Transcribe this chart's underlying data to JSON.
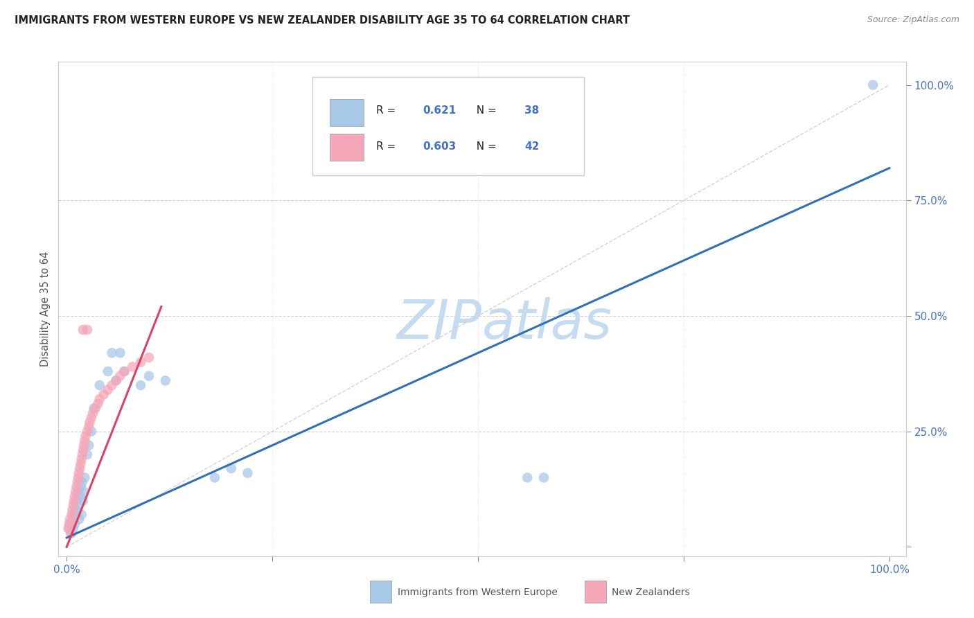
{
  "title": "IMMIGRANTS FROM WESTERN EUROPE VS NEW ZEALANDER DISABILITY AGE 35 TO 64 CORRELATION CHART",
  "source": "Source: ZipAtlas.com",
  "ylabel": "Disability Age 35 to 64",
  "xlim": [
    -0.01,
    1.02
  ],
  "ylim": [
    -0.02,
    1.05
  ],
  "blue_R": "0.621",
  "blue_N": "38",
  "pink_R": "0.603",
  "pink_N": "42",
  "blue_dot_color": "#a8c8e8",
  "pink_dot_color": "#f4a7b9",
  "blue_line_color": "#3070b8",
  "pink_line_color": "#e04060",
  "grid_color": "#d0d0d0",
  "diagonal_color": "#c8c8c8",
  "watermark_color": "#c5dcf0",
  "blue_line_x0": 0.0,
  "blue_line_y0": 0.02,
  "blue_line_x1": 1.0,
  "blue_line_y1": 0.82,
  "pink_line_x0": 0.0,
  "pink_line_y0": 0.0,
  "pink_line_x1": 0.115,
  "pink_line_y1": 0.52,
  "blue_scatter_x": [
    0.003,
    0.005,
    0.006,
    0.007,
    0.008,
    0.009,
    0.01,
    0.011,
    0.012,
    0.013,
    0.014,
    0.015,
    0.016,
    0.017,
    0.018,
    0.019,
    0.02,
    0.021,
    0.022,
    0.025,
    0.027,
    0.03,
    0.033,
    0.04,
    0.05,
    0.055,
    0.06,
    0.065,
    0.07,
    0.09,
    0.1,
    0.12,
    0.18,
    0.2,
    0.22,
    0.56,
    0.58,
    0.98
  ],
  "blue_scatter_y": [
    0.04,
    0.05,
    0.03,
    0.06,
    0.04,
    0.07,
    0.05,
    0.08,
    0.1,
    0.09,
    0.12,
    0.06,
    0.11,
    0.13,
    0.07,
    0.14,
    0.1,
    0.12,
    0.15,
    0.2,
    0.22,
    0.25,
    0.3,
    0.35,
    0.38,
    0.42,
    0.36,
    0.42,
    0.38,
    0.35,
    0.37,
    0.36,
    0.15,
    0.17,
    0.16,
    0.15,
    0.15,
    1.0
  ],
  "pink_scatter_x": [
    0.002,
    0.003,
    0.004,
    0.005,
    0.006,
    0.007,
    0.008,
    0.009,
    0.01,
    0.011,
    0.012,
    0.013,
    0.014,
    0.015,
    0.016,
    0.017,
    0.018,
    0.019,
    0.02,
    0.021,
    0.022,
    0.023,
    0.025,
    0.027,
    0.028,
    0.03,
    0.032,
    0.035,
    0.038,
    0.04,
    0.045,
    0.05,
    0.055,
    0.06,
    0.065,
    0.07,
    0.08,
    0.09,
    0.1,
    0.02,
    0.025,
    0.005
  ],
  "pink_scatter_y": [
    0.04,
    0.05,
    0.06,
    0.05,
    0.07,
    0.08,
    0.09,
    0.1,
    0.11,
    0.12,
    0.13,
    0.14,
    0.15,
    0.16,
    0.17,
    0.18,
    0.19,
    0.2,
    0.21,
    0.22,
    0.23,
    0.24,
    0.25,
    0.26,
    0.27,
    0.28,
    0.29,
    0.3,
    0.31,
    0.32,
    0.33,
    0.34,
    0.35,
    0.36,
    0.37,
    0.38,
    0.39,
    0.4,
    0.41,
    0.47,
    0.47,
    0.03
  ]
}
